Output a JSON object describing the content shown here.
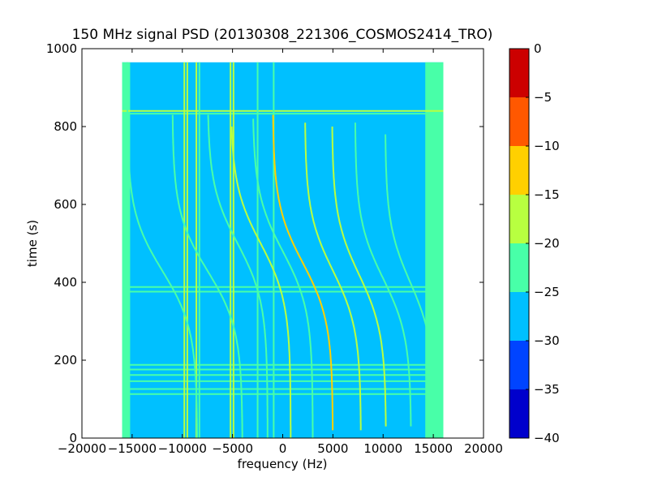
{
  "chart_data": {
    "type": "heatmap",
    "title": "150 MHz signal PSD (20130308_221306_COSMOS2414_TRO)",
    "xlabel": "frequency (Hz)",
    "ylabel": "time (s)",
    "xlim": [
      -20000,
      20000
    ],
    "ylim": [
      0,
      1000
    ],
    "x_ticks": [
      -20000,
      -15000,
      -10000,
      -5000,
      0,
      5000,
      10000,
      15000,
      20000
    ],
    "x_tick_labels": [
      "−20000",
      "−15000",
      "−10000",
      "−5000",
      "0",
      "5000",
      "10000",
      "15000",
      "20000"
    ],
    "y_ticks": [
      0,
      200,
      400,
      600,
      800,
      1000
    ],
    "y_tick_labels": [
      "0",
      "200",
      "400",
      "600",
      "800",
      "1000"
    ],
    "data_extent": {
      "x": [
        -16000,
        16000
      ],
      "y": [
        0,
        965
      ]
    },
    "background_level": -27.5,
    "edge_bands": [
      {
        "x": [
          -16000,
          -15200
        ],
        "level": -22.5
      },
      {
        "x": [
          14200,
          16000
        ],
        "level": -22.5
      }
    ],
    "vertical_lines": [
      {
        "x": -9800,
        "level": -17.5
      },
      {
        "x": -9500,
        "level": -17.5
      },
      {
        "x": -8600,
        "level": -17.5
      },
      {
        "x": -8300,
        "level": -22.5
      },
      {
        "x": -5200,
        "level": -17.5
      },
      {
        "x": -4900,
        "level": -17.5
      },
      {
        "x": -2500,
        "level": -22.5
      },
      {
        "x": -900,
        "level": -22.5
      }
    ],
    "horizontal_lines": [
      {
        "y": 840,
        "level": -17.5
      },
      {
        "y": 833,
        "level": -22.5
      },
      {
        "y": 388,
        "level": -22.5
      },
      {
        "y": 376,
        "level": -22.5
      },
      {
        "y": 188,
        "level": -22.5
      },
      {
        "y": 176,
        "level": -22.5
      },
      {
        "y": 162,
        "level": -22.5
      },
      {
        "y": 146,
        "level": -22.5
      },
      {
        "y": 126,
        "level": -22.5
      },
      {
        "y": 113,
        "level": -22.5
      }
    ],
    "doppler_tracks": [
      {
        "center": -12000,
        "t0": 430,
        "halfspan": 3500,
        "top": 965,
        "bottom": 0,
        "level": -22.5
      },
      {
        "center": -7500,
        "t0": 430,
        "halfspan": 3500,
        "top": 830,
        "bottom": 0,
        "level": -22.5
      },
      {
        "center": -4500,
        "t0": 500,
        "halfspan": 3000,
        "top": 830,
        "bottom": 0,
        "level": -22.5
      },
      {
        "center": -2200,
        "t0": 500,
        "halfspan": 3000,
        "top": 800,
        "bottom": 0,
        "level": -17.5
      },
      {
        "center": 0,
        "t0": 480,
        "halfspan": 3000,
        "top": 820,
        "bottom": 0,
        "level": -22.5
      },
      {
        "center": 2000,
        "t0": 450,
        "halfspan": 3000,
        "top": 830,
        "bottom": 20,
        "level": -12.5
      },
      {
        "center": 5000,
        "t0": 430,
        "halfspan": 2800,
        "top": 810,
        "bottom": 20,
        "level": -17.5
      },
      {
        "center": 7600,
        "t0": 420,
        "halfspan": 2700,
        "top": 800,
        "bottom": 30,
        "level": -17.5
      },
      {
        "center": 10000,
        "t0": 410,
        "halfspan": 2800,
        "top": 810,
        "bottom": 30,
        "level": -22.5
      },
      {
        "center": 12700,
        "t0": 400,
        "halfspan": 2500,
        "top": 780,
        "bottom": 50,
        "level": -22.5
      },
      {
        "center": 15500,
        "t0": 610,
        "halfspan": 1000,
        "top": 780,
        "bottom": 600,
        "level": -22.5
      }
    ],
    "colorbar": {
      "levels": [
        -40,
        -35,
        -30,
        -25,
        -20,
        -15,
        -10,
        -5,
        0
      ],
      "tick_labels": [
        "−40",
        "−35",
        "−30",
        "−25",
        "−20",
        "−15",
        "−10",
        "−5",
        "0"
      ],
      "colors": [
        "#0000cc",
        "#0044ff",
        "#00c0ff",
        "#48ffa8",
        "#b8ff40",
        "#ffd000",
        "#ff5800",
        "#cc0000"
      ]
    },
    "grid": false
  }
}
